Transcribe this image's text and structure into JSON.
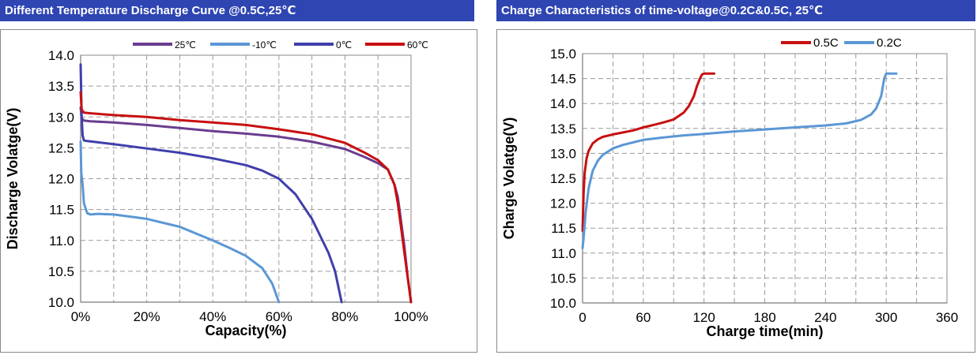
{
  "chart_data": [
    {
      "type": "line",
      "title": "Different Temperature Discharge Curve @0.5C,25℃",
      "xlabel": "Capacity(%)",
      "ylabel": "Discharge Volatge(V)",
      "xlim": [
        0,
        100
      ],
      "ylim": [
        10.0,
        14.0
      ],
      "x_ticks": [
        "0%",
        "20%",
        "40%",
        "60%",
        "80%",
        "100%"
      ],
      "y_ticks": [
        "10.0",
        "10.5",
        "11.0",
        "11.5",
        "12.0",
        "12.5",
        "13.0",
        "13.5",
        "14.0"
      ],
      "grid": true,
      "legend_position": "top",
      "series": [
        {
          "name": "25℃",
          "color": "#6a3d8f",
          "x": [
            0,
            0.3,
            1,
            3,
            10,
            20,
            30,
            40,
            50,
            60,
            70,
            80,
            86,
            90,
            93,
            95,
            96,
            97,
            98,
            99,
            100
          ],
          "y": [
            13.15,
            12.98,
            12.94,
            12.93,
            12.91,
            12.87,
            12.82,
            12.77,
            12.73,
            12.68,
            12.6,
            12.48,
            12.35,
            12.25,
            12.15,
            11.9,
            11.7,
            11.3,
            10.9,
            10.4,
            10.0
          ]
        },
        {
          "name": "-10℃",
          "color": "#5b97d5",
          "x": [
            0,
            0.2,
            0.6,
            1,
            2,
            3,
            5,
            10,
            20,
            30,
            40,
            45,
            50,
            55,
            58,
            60
          ],
          "y": [
            12.6,
            12.1,
            11.9,
            11.6,
            11.44,
            11.42,
            11.43,
            11.42,
            11.35,
            11.22,
            11.0,
            10.88,
            10.75,
            10.55,
            10.3,
            10.0
          ]
        },
        {
          "name": "0℃",
          "color": "#3f3fad",
          "x": [
            0,
            0.3,
            0.6,
            1,
            2,
            5,
            10,
            20,
            30,
            40,
            50,
            55,
            60,
            65,
            70,
            75,
            77,
            79
          ],
          "y": [
            13.85,
            13.0,
            12.7,
            12.62,
            12.61,
            12.59,
            12.56,
            12.49,
            12.42,
            12.33,
            12.22,
            12.13,
            12.0,
            11.75,
            11.35,
            10.8,
            10.5,
            10.0
          ]
        },
        {
          "name": "60℃",
          "color": "#c80f0f",
          "x": [
            0,
            0.3,
            1,
            3,
            10,
            20,
            30,
            40,
            50,
            60,
            70,
            80,
            86,
            90,
            93,
            95,
            96,
            97,
            98,
            99,
            100
          ],
          "y": [
            13.4,
            13.12,
            13.07,
            13.06,
            13.03,
            13.0,
            12.95,
            12.91,
            12.87,
            12.8,
            12.72,
            12.58,
            12.42,
            12.3,
            12.15,
            11.9,
            11.6,
            11.2,
            10.8,
            10.4,
            10.0
          ]
        }
      ]
    },
    {
      "type": "line",
      "title": "Charge  Characteristics of time-voltage@0.2C&0.5C, 25℃",
      "xlabel": "Charge time(min)",
      "ylabel": "Charge Volatge(V)",
      "xlim": [
        0,
        360
      ],
      "ylim": [
        10.0,
        15.0
      ],
      "x_ticks": [
        "0",
        "60",
        "120",
        "180",
        "240",
        "300",
        "360"
      ],
      "y_ticks": [
        "10.0",
        "10.5",
        "11.0",
        "11.5",
        "12.0",
        "12.5",
        "13.0",
        "13.5",
        "14.0",
        "14.5",
        "15.0"
      ],
      "grid": true,
      "legend_position": "top-right",
      "series": [
        {
          "name": "0.5C",
          "color": "#c80f0f",
          "x": [
            0,
            1,
            2,
            4,
            6,
            10,
            15,
            20,
            30,
            40,
            50,
            60,
            70,
            80,
            90,
            100,
            105,
            110,
            113,
            116,
            118,
            120,
            125,
            130
          ],
          "y": [
            11.45,
            12.2,
            12.6,
            12.9,
            13.05,
            13.2,
            13.28,
            13.33,
            13.38,
            13.42,
            13.46,
            13.52,
            13.57,
            13.62,
            13.68,
            13.82,
            13.95,
            14.15,
            14.35,
            14.5,
            14.58,
            14.6,
            14.6,
            14.6
          ],
          "legend_x": 0,
          "legend_y": 0
        },
        {
          "name": "0.2C",
          "color": "#5b97d5",
          "x": [
            0,
            1,
            3,
            6,
            10,
            15,
            20,
            30,
            40,
            50,
            60,
            80,
            100,
            120,
            150,
            180,
            210,
            240,
            260,
            275,
            285,
            290,
            295,
            298,
            300,
            302,
            305,
            310
          ],
          "y": [
            11.1,
            11.3,
            11.8,
            12.3,
            12.65,
            12.85,
            12.97,
            13.1,
            13.17,
            13.22,
            13.27,
            13.32,
            13.36,
            13.39,
            13.44,
            13.48,
            13.52,
            13.56,
            13.6,
            13.67,
            13.78,
            13.9,
            14.15,
            14.5,
            14.6,
            14.6,
            14.6,
            14.6
          ]
        }
      ]
    }
  ]
}
